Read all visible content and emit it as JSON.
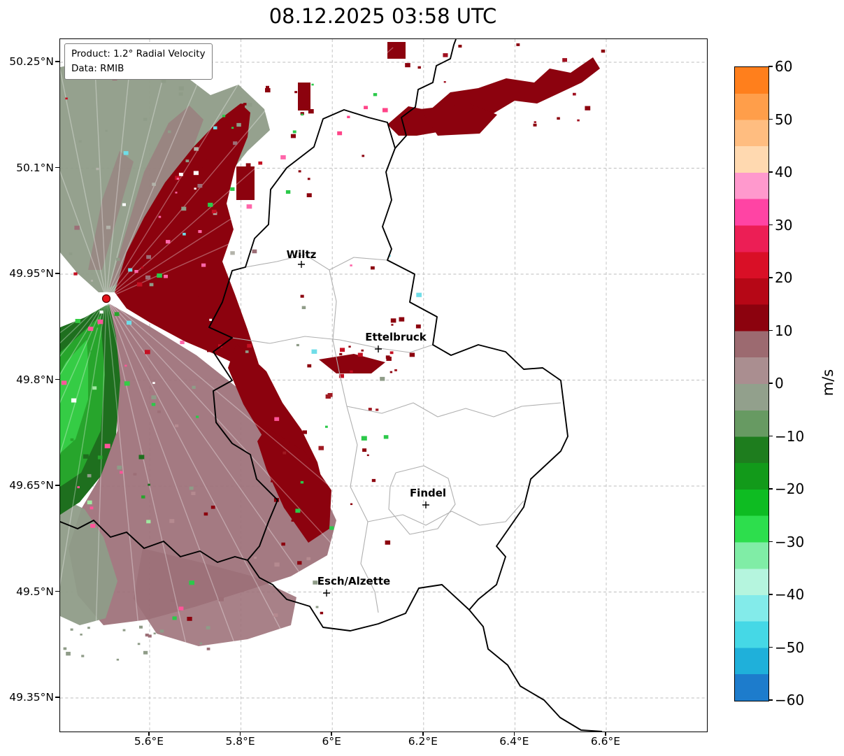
{
  "title": "08.12.2025 03:58 UTC",
  "info_box": {
    "product": "Product: 1.2° Radial Velocity",
    "data_source": "Data: RMIB"
  },
  "map": {
    "y_ticks": [
      "50.25°N",
      "50.1°N",
      "49.95°N",
      "49.8°N",
      "49.65°N",
      "49.5°N",
      "49.35°N"
    ],
    "x_ticks": [
      "5.6°E",
      "5.8°E",
      "6°E",
      "6.2°E",
      "6.4°E",
      "6.6°E"
    ],
    "cities": [
      {
        "name": "Wiltz"
      },
      {
        "name": "Ettelbruck"
      },
      {
        "name": "Findel"
      },
      {
        "name": "Esch/Alzette"
      }
    ]
  },
  "colorbar": {
    "label": "m/s",
    "ticks": [
      "60",
      "50",
      "40",
      "30",
      "20",
      "10",
      "0",
      "−10",
      "−20",
      "−30",
      "−40",
      "−50",
      "−60"
    ],
    "stop_colors": [
      "#ff7f1c",
      "#ff9e4a",
      "#ffbd80",
      "#ffd9b0",
      "#ff99cd",
      "#ff44a4",
      "#ec1e55",
      "#d90f26",
      "#b60716",
      "#8c020e",
      "#9c6a70",
      "#aa8e90",
      "#92a08c",
      "#679a62",
      "#1e7d1e",
      "#129a1a",
      "#0ebc22",
      "#2dde4d",
      "#80eda6",
      "#b5f5de",
      "#83ebea",
      "#45d8e6",
      "#1fb0da",
      "#1d7ccc"
    ]
  },
  "palette": {
    "outbound_red": "#8c020e",
    "outbound_red_bright": "#c41022",
    "near_zero_outbound": "#9c6f77",
    "near_zero_inbound": "#8f9c88",
    "inbound_dark_green": "#1e6f1e",
    "inbound_mid_green": "#27a52c",
    "inbound_bright_green": "#35cc45",
    "radar_dot": "#e31219"
  },
  "chart_data": {
    "type": "heatmap",
    "title": "08.12.2025 03:58 UTC",
    "product": "1.2° Radial Velocity",
    "data_source": "RMIB",
    "units": "m/s",
    "value_range": [
      -60,
      60
    ],
    "colorbar_ticks": [
      60,
      50,
      40,
      30,
      20,
      10,
      0,
      -10,
      -20,
      -30,
      -40,
      -50,
      -60
    ],
    "x_axis": {
      "tick_labels": [
        "5.6°E",
        "5.8°E",
        "6°E",
        "6.2°E",
        "6.4°E",
        "6.6°E"
      ]
    },
    "y_axis": {
      "tick_labels": [
        "50.25°N",
        "50.1°N",
        "49.95°N",
        "49.8°N",
        "49.65°N",
        "49.5°N",
        "49.35°N"
      ]
    },
    "cities": [
      "Wiltz",
      "Ettelbruck",
      "Findel",
      "Esch/Alzette"
    ],
    "regions": [
      {
        "description": "Inbound velocities (about -10 to -30 m/s, greens) in a fan west-southwest of the radar"
      },
      {
        "description": "Outbound velocities (about +10 to +25 m/s, dark red) in a broad wedge northeast of the radar"
      },
      {
        "description": "Near-zero outbound velocities (0 to +10 m/s, gray-mauve) north and south-southeast of the radar"
      },
      {
        "description": "Band of outbound echoes (+10 to +20 m/s) along the northeastern edge of the map"
      },
      {
        "description": "Radar site shown as a red dot near 5.5°E, 49.92°N on the western edge of the data fan"
      }
    ]
  }
}
